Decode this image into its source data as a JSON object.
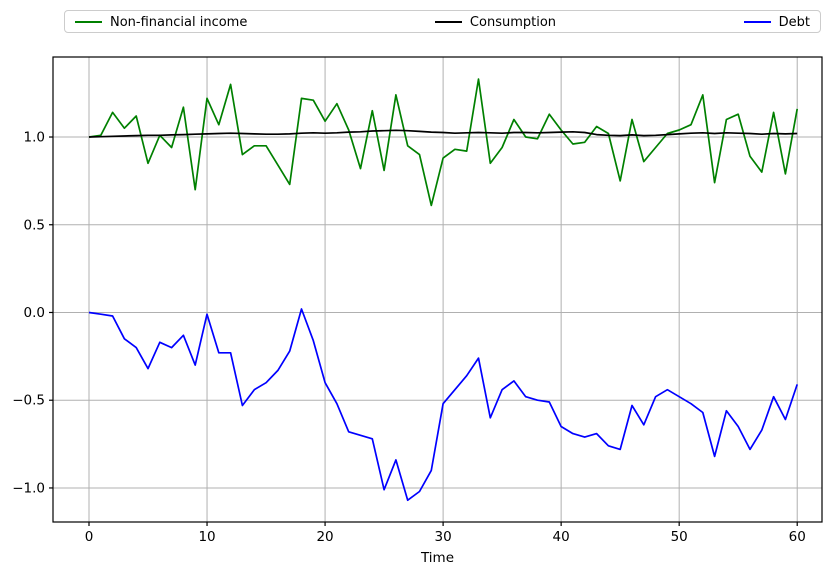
{
  "chart_data": {
    "type": "line",
    "title": "",
    "xlabel": "Time",
    "ylabel": "",
    "grid": true,
    "legend_position": "top-expanded",
    "xlim": [
      -3.05,
      62.1
    ],
    "ylim": [
      -1.194,
      1.456
    ],
    "xticks": [
      0,
      10,
      20,
      30,
      40,
      50,
      60
    ],
    "yticks": [
      1.0,
      0.5,
      0.0,
      -0.5,
      -1.0
    ],
    "ytick_labels": [
      "1.0",
      "0.5",
      "0.0",
      "−0.5",
      "−1.0"
    ],
    "x": [
      0,
      1,
      2,
      3,
      4,
      5,
      6,
      7,
      8,
      9,
      10,
      11,
      12,
      13,
      14,
      15,
      16,
      17,
      18,
      19,
      20,
      21,
      22,
      23,
      24,
      25,
      26,
      27,
      28,
      29,
      30,
      31,
      32,
      33,
      34,
      35,
      36,
      37,
      38,
      39,
      40,
      41,
      42,
      43,
      44,
      45,
      46,
      47,
      48,
      49,
      50,
      51,
      52,
      53,
      54,
      55,
      56,
      57,
      58,
      59,
      60
    ],
    "series": [
      {
        "name": "Non-financial income",
        "color": "#008000",
        "values": [
          1.0,
          1.01,
          1.14,
          1.05,
          1.12,
          0.85,
          1.01,
          0.94,
          1.17,
          0.7,
          1.22,
          1.07,
          1.3,
          0.9,
          0.95,
          0.95,
          0.84,
          0.73,
          1.22,
          1.21,
          1.09,
          1.19,
          1.04,
          0.82,
          1.15,
          0.81,
          1.24,
          0.95,
          0.9,
          0.61,
          0.88,
          0.93,
          0.92,
          1.33,
          0.85,
          0.94,
          1.1,
          1.0,
          0.99,
          1.13,
          1.04,
          0.96,
          0.97,
          1.06,
          1.02,
          0.75,
          1.1,
          0.86,
          0.94,
          1.02,
          1.04,
          1.07,
          1.24,
          0.74,
          1.1,
          1.13,
          0.89,
          0.8,
          1.14,
          0.79,
          1.16
        ]
      },
      {
        "name": "Consumption",
        "color": "#000000",
        "values": [
          1.0,
          1.002,
          1.004,
          1.006,
          1.008,
          1.01,
          1.01,
          1.012,
          1.014,
          1.016,
          1.018,
          1.02,
          1.022,
          1.02,
          1.018,
          1.016,
          1.016,
          1.018,
          1.022,
          1.024,
          1.022,
          1.024,
          1.028,
          1.03,
          1.034,
          1.036,
          1.038,
          1.036,
          1.032,
          1.028,
          1.026,
          1.022,
          1.024,
          1.026,
          1.024,
          1.022,
          1.026,
          1.026,
          1.024,
          1.026,
          1.028,
          1.03,
          1.026,
          1.014,
          1.01,
          1.008,
          1.012,
          1.008,
          1.01,
          1.014,
          1.018,
          1.022,
          1.024,
          1.02,
          1.024,
          1.022,
          1.02,
          1.016,
          1.02,
          1.018,
          1.02
        ]
      },
      {
        "name": "Debt",
        "color": "#0000ff",
        "values": [
          0.0,
          -0.01,
          -0.02,
          -0.15,
          -0.2,
          -0.32,
          -0.17,
          -0.2,
          -0.13,
          -0.3,
          -0.01,
          -0.23,
          -0.23,
          -0.53,
          -0.44,
          -0.4,
          -0.33,
          -0.22,
          0.02,
          -0.16,
          -0.4,
          -0.52,
          -0.68,
          -0.7,
          -0.72,
          -1.01,
          -0.84,
          -1.07,
          -1.02,
          -0.9,
          -0.52,
          -0.44,
          -0.36,
          -0.26,
          -0.6,
          -0.44,
          -0.39,
          -0.48,
          -0.5,
          -0.51,
          -0.65,
          -0.69,
          -0.71,
          -0.69,
          -0.76,
          -0.78,
          -0.53,
          -0.64,
          -0.48,
          -0.44,
          -0.48,
          -0.52,
          -0.57,
          -0.82,
          -0.56,
          -0.65,
          -0.78,
          -0.67,
          -0.48,
          -0.61,
          -0.41
        ]
      }
    ]
  },
  "colors": {
    "background": "#ffffff",
    "grid": "#b0b0b0",
    "spine": "#000000",
    "tick_text": "#000000",
    "legend_border": "#cccccc"
  }
}
